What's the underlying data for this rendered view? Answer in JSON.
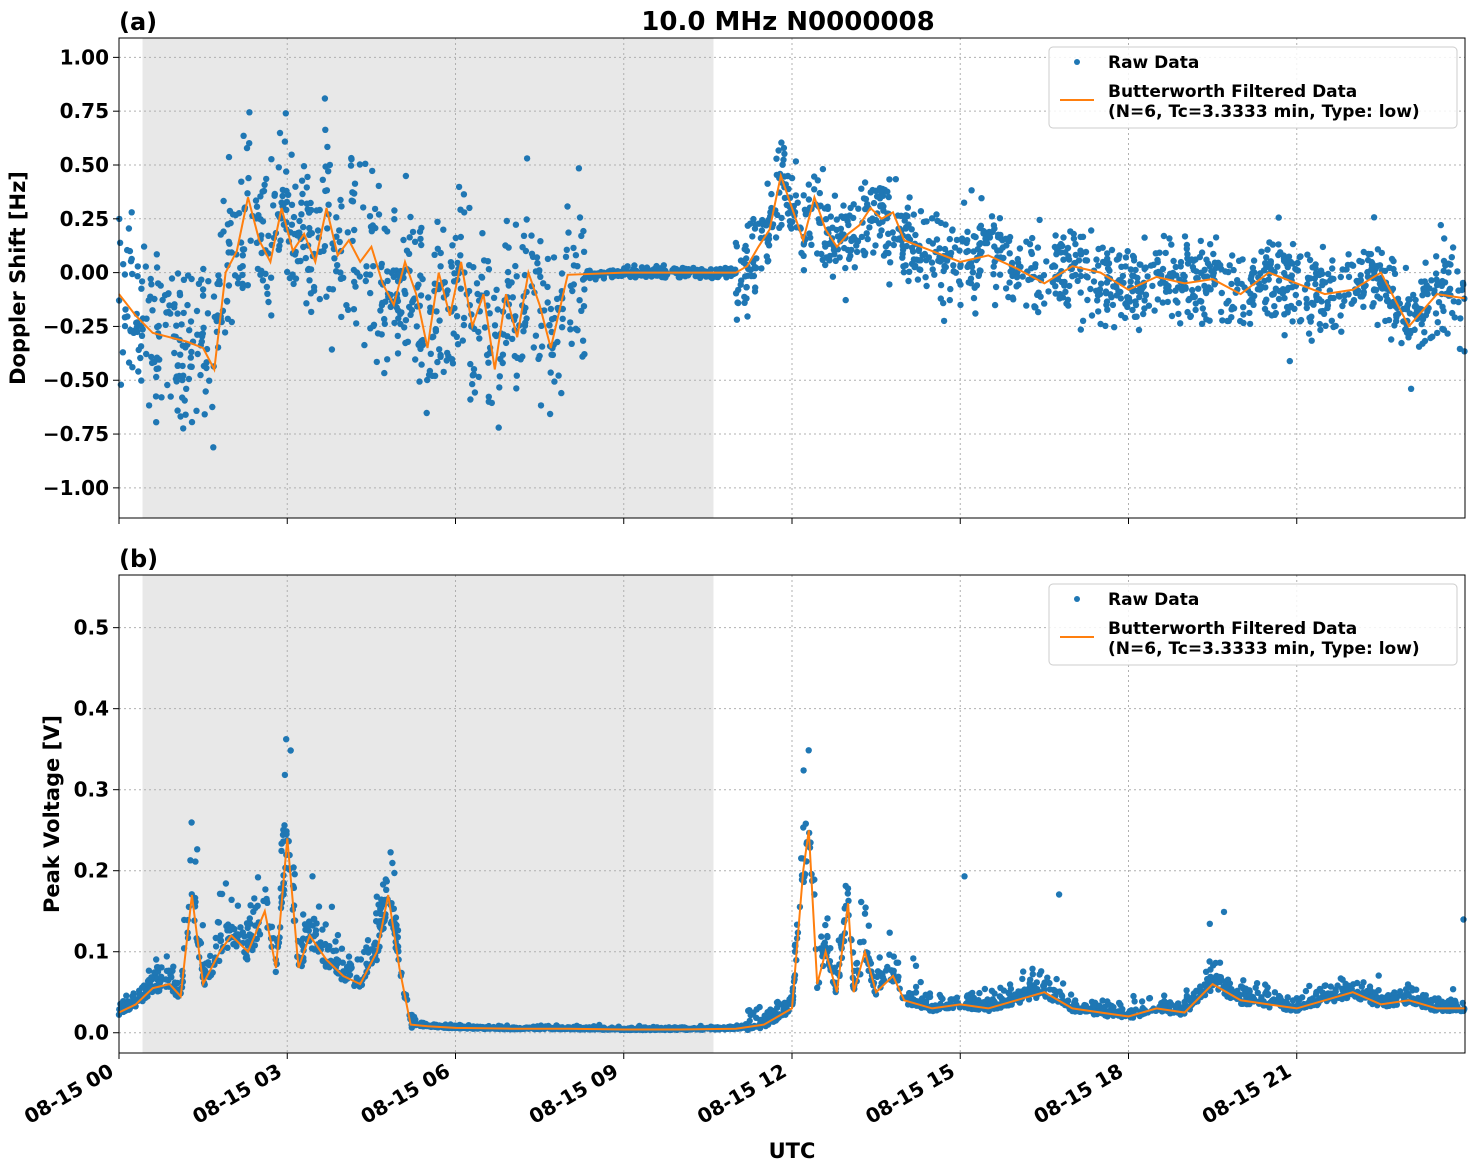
{
  "title": "10.0 MHz N0000008",
  "xlabel": "UTC",
  "legend": {
    "raw": "Raw Data",
    "filtered_line1": "Butterworth Filtered Data",
    "filtered_line2": "(N=6, Tc=3.3333 min, Type: low)"
  },
  "colors": {
    "raw": "#1f77b4",
    "filtered": "#ff7f0e",
    "shade": "#e8e8e8",
    "grid": "#b0b0b0"
  },
  "x_ticks": [
    {
      "t": 0,
      "label": "08-15 00"
    },
    {
      "t": 3,
      "label": "08-15 03"
    },
    {
      "t": 6,
      "label": "08-15 06"
    },
    {
      "t": 9,
      "label": "08-15 09"
    },
    {
      "t": 12,
      "label": "08-15 12"
    },
    {
      "t": 15,
      "label": "08-15 15"
    },
    {
      "t": 18,
      "label": "08-15 18"
    },
    {
      "t": 21,
      "label": "08-15 21"
    }
  ],
  "chart_data": [
    {
      "type": "scatter",
      "panel_label": "(a)",
      "ylabel": "Doppler Shift [Hz]",
      "xlim_hours": [
        0,
        24
      ],
      "ylim": [
        -1.14,
        1.09
      ],
      "y_ticks": [
        {
          "v": 1.0,
          "label": "1.00"
        },
        {
          "v": 0.75,
          "label": "0.75"
        },
        {
          "v": 0.5,
          "label": "0.50"
        },
        {
          "v": 0.25,
          "label": "0.25"
        },
        {
          "v": 0.0,
          "label": "0.00"
        },
        {
          "v": -0.25,
          "label": "−0.25"
        },
        {
          "v": -0.5,
          "label": "−0.50"
        },
        {
          "v": -0.75,
          "label": "−0.75"
        },
        {
          "v": -1.0,
          "label": "−1.00"
        }
      ],
      "night_shading_hours": [
        0.42,
        10.6
      ],
      "grid": true,
      "legend_position": "upper right",
      "series": [
        {
          "name": "Butterworth Filtered Data",
          "x_hours": [
            0,
            0.3,
            0.6,
            0.9,
            1.2,
            1.5,
            1.7,
            1.9,
            2.1,
            2.3,
            2.5,
            2.7,
            2.9,
            3.1,
            3.3,
            3.5,
            3.7,
            3.9,
            4.1,
            4.3,
            4.5,
            4.7,
            4.9,
            5.1,
            5.3,
            5.5,
            5.7,
            5.9,
            6.1,
            6.3,
            6.5,
            6.7,
            6.9,
            7.1,
            7.3,
            7.5,
            7.7,
            8.0,
            9.0,
            10.0,
            11.0,
            11.2,
            11.4,
            11.6,
            11.8,
            12.0,
            12.2,
            12.4,
            12.6,
            12.8,
            13.0,
            13.2,
            13.4,
            13.6,
            13.8,
            14.0,
            14.5,
            15.0,
            15.5,
            16.0,
            16.5,
            17.0,
            17.5,
            18.0,
            18.5,
            19.0,
            19.5,
            20.0,
            20.5,
            21.0,
            21.5,
            22.0,
            22.5,
            23.0,
            23.5,
            24.0
          ],
          "y": [
            -0.1,
            -0.2,
            -0.28,
            -0.3,
            -0.32,
            -0.35,
            -0.45,
            0.0,
            0.1,
            0.35,
            0.15,
            0.05,
            0.3,
            0.1,
            0.18,
            0.05,
            0.3,
            0.08,
            0.15,
            0.05,
            0.12,
            -0.05,
            -0.15,
            0.05,
            -0.1,
            -0.35,
            0.0,
            -0.2,
            0.05,
            -0.25,
            -0.1,
            -0.45,
            -0.1,
            -0.3,
            0.0,
            -0.15,
            -0.35,
            -0.01,
            0.0,
            0.0,
            0.0,
            0.03,
            0.12,
            0.2,
            0.45,
            0.3,
            0.15,
            0.35,
            0.2,
            0.12,
            0.18,
            0.22,
            0.3,
            0.25,
            0.28,
            0.15,
            0.1,
            0.05,
            0.08,
            0.02,
            -0.05,
            0.03,
            0.0,
            -0.08,
            -0.02,
            -0.05,
            -0.03,
            -0.1,
            0.0,
            -0.05,
            -0.1,
            -0.08,
            0.0,
            -0.25,
            -0.1,
            -0.12
          ]
        }
      ]
    },
    {
      "type": "scatter",
      "panel_label": "(b)",
      "ylabel": "Peak Voltage [V]",
      "xlim_hours": [
        0,
        24
      ],
      "ylim": [
        -0.025,
        0.565
      ],
      "y_ticks": [
        {
          "v": 0.0,
          "label": "0.0"
        },
        {
          "v": 0.1,
          "label": "0.1"
        },
        {
          "v": 0.2,
          "label": "0.2"
        },
        {
          "v": 0.3,
          "label": "0.3"
        },
        {
          "v": 0.4,
          "label": "0.4"
        },
        {
          "v": 0.5,
          "label": "0.5"
        }
      ],
      "night_shading_hours": [
        0.42,
        10.6
      ],
      "grid": true,
      "legend_position": "upper right",
      "series": [
        {
          "name": "Butterworth Filtered Data",
          "x_hours": [
            0,
            0.3,
            0.6,
            0.9,
            1.1,
            1.3,
            1.5,
            1.8,
            2.0,
            2.3,
            2.6,
            2.8,
            3.0,
            3.2,
            3.4,
            3.7,
            4.0,
            4.3,
            4.6,
            4.8,
            5.0,
            5.2,
            5.5,
            6.0,
            7.0,
            8.0,
            9.0,
            10.0,
            11.0,
            11.5,
            12.0,
            12.2,
            12.3,
            12.45,
            12.6,
            12.8,
            13.0,
            13.1,
            13.3,
            13.5,
            13.8,
            14.0,
            14.5,
            15.0,
            15.5,
            16.0,
            16.5,
            17.0,
            17.5,
            18.0,
            18.5,
            19.0,
            19.5,
            20.0,
            20.5,
            21.0,
            21.5,
            22.0,
            22.5,
            23.0,
            23.5,
            24.0
          ],
          "y": [
            0.025,
            0.035,
            0.055,
            0.06,
            0.045,
            0.17,
            0.06,
            0.1,
            0.12,
            0.1,
            0.15,
            0.08,
            0.24,
            0.08,
            0.12,
            0.09,
            0.07,
            0.06,
            0.1,
            0.17,
            0.08,
            0.01,
            0.008,
            0.006,
            0.005,
            0.005,
            0.004,
            0.004,
            0.005,
            0.01,
            0.03,
            0.2,
            0.25,
            0.06,
            0.1,
            0.05,
            0.16,
            0.05,
            0.1,
            0.05,
            0.07,
            0.04,
            0.03,
            0.035,
            0.03,
            0.04,
            0.05,
            0.03,
            0.025,
            0.02,
            0.03,
            0.025,
            0.06,
            0.04,
            0.035,
            0.03,
            0.04,
            0.05,
            0.035,
            0.04,
            0.03,
            0.03
          ]
        }
      ]
    }
  ]
}
